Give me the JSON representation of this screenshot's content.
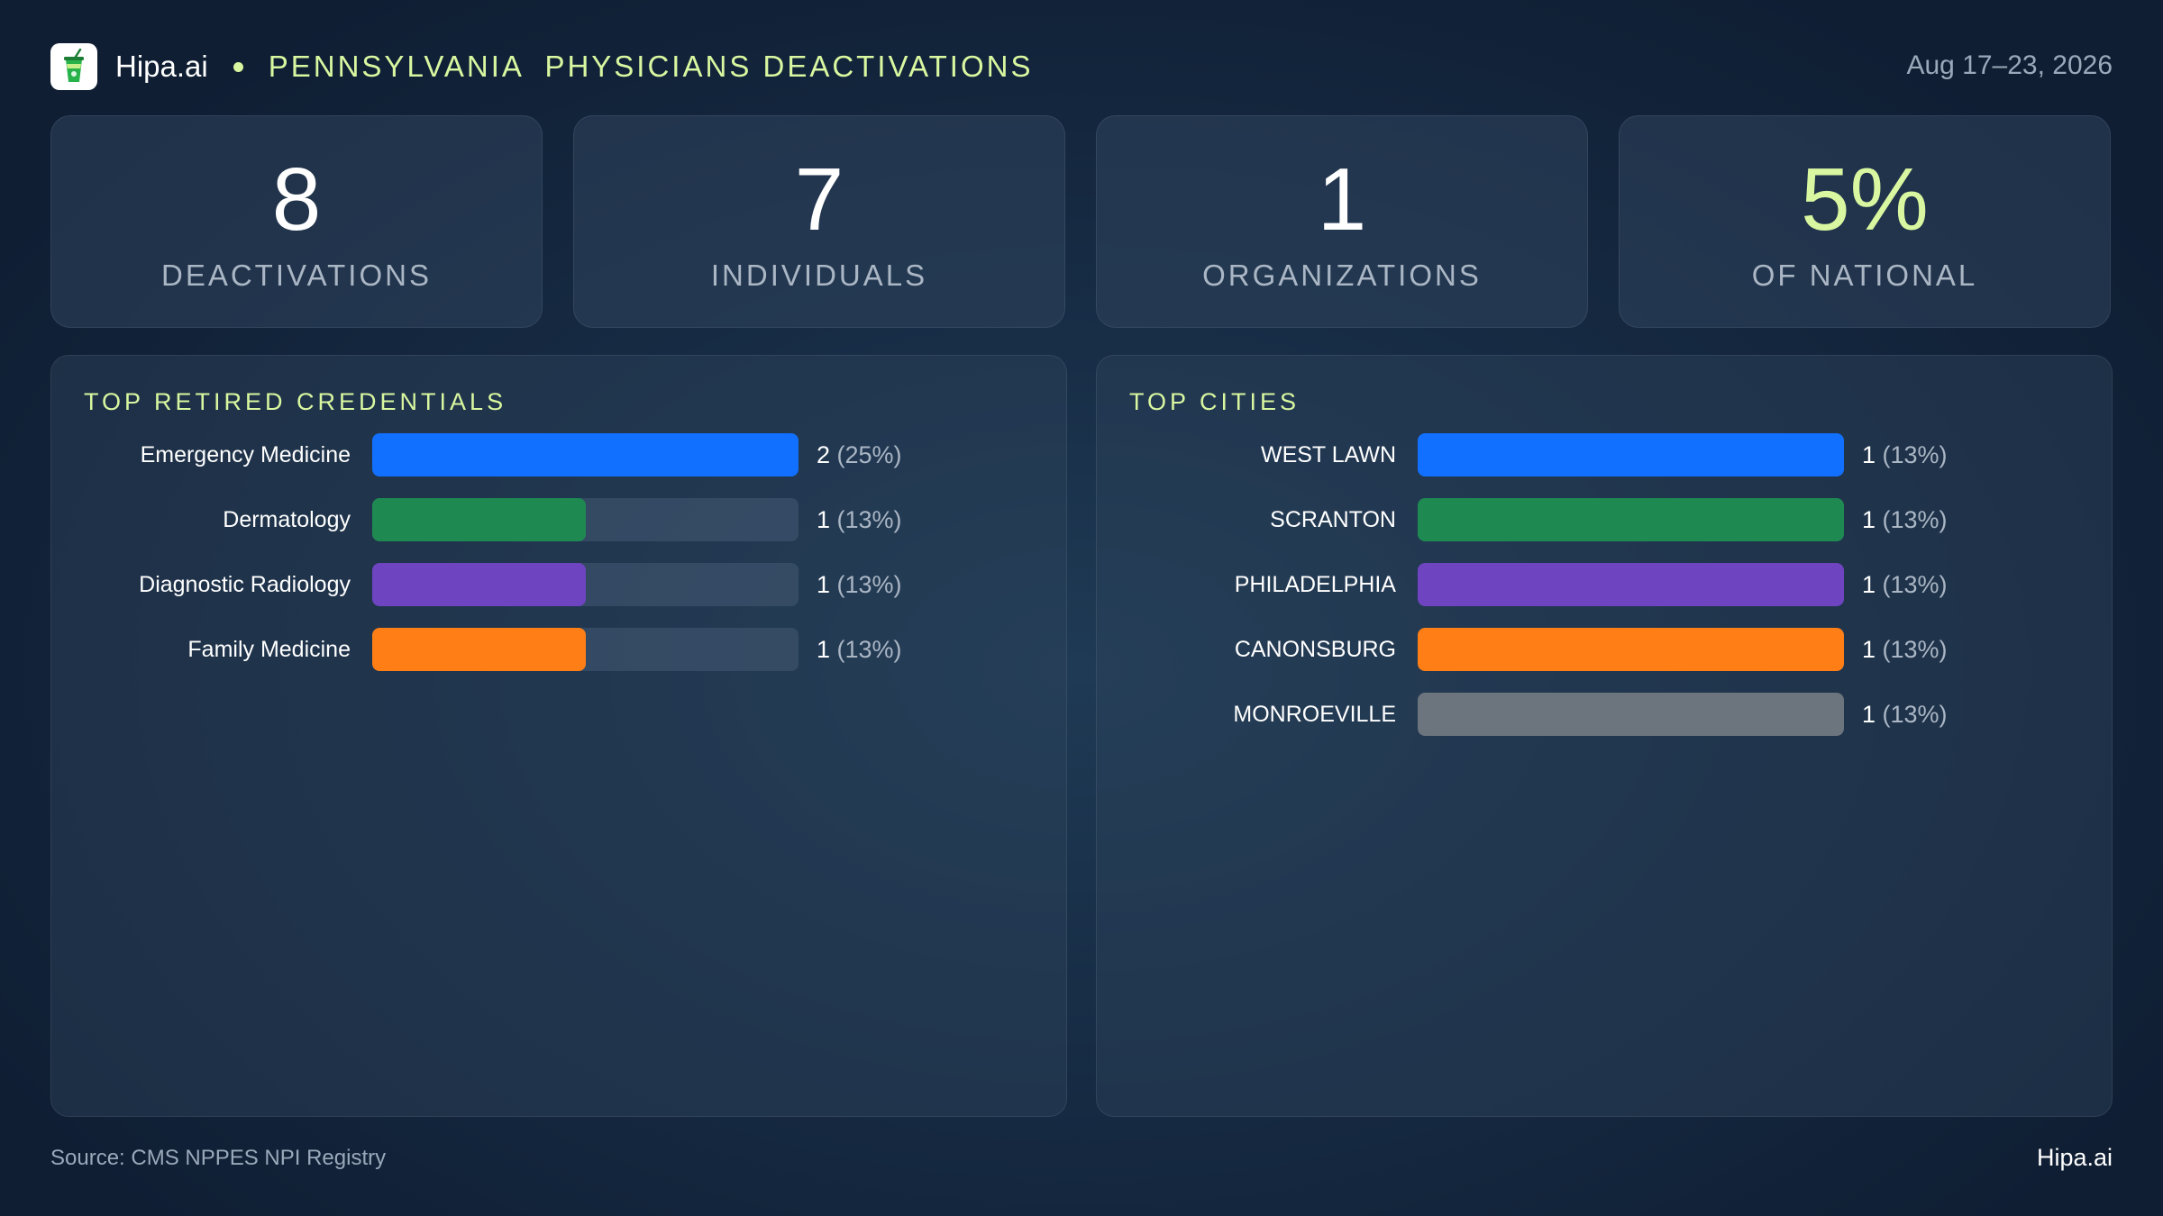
{
  "header": {
    "brand": "Hipa.ai",
    "title": "PENNSYLVANIA  PHYSICIANS DEACTIVATIONS",
    "date": "Aug 17–23, 2026"
  },
  "kpis": [
    {
      "value": "8",
      "label": "DEACTIVATIONS",
      "accent": false
    },
    {
      "value": "7",
      "label": "INDIVIDUALS",
      "accent": false
    },
    {
      "value": "1",
      "label": "ORGANIZATIONS",
      "accent": false
    },
    {
      "value": "5%",
      "label": "OF NATIONAL",
      "accent": true
    }
  ],
  "colors": {
    "accent": "#d9f7a0",
    "blue": "#1170ff",
    "green": "#1e8a52",
    "purple": "#6e44c0",
    "orange": "#ff7f16",
    "gray": "#6c747d"
  },
  "chart_data": [
    {
      "type": "bar",
      "title": "TOP RETIRED CREDENTIALS",
      "categories": [
        "Emergency Medicine",
        "Dermatology",
        "Diagnostic Radiology",
        "Family Medicine"
      ],
      "values": [
        2,
        1,
        1,
        1
      ],
      "value_labels": [
        "(25%)",
        "(13%)",
        "(13%)",
        "(13%)"
      ],
      "colors": [
        "#1170ff",
        "#1e8a52",
        "#6e44c0",
        "#ff7f16"
      ],
      "xlim": [
        0,
        2
      ]
    },
    {
      "type": "bar",
      "title": "TOP CITIES",
      "categories": [
        "WEST LAWN",
        "SCRANTON",
        "PHILADELPHIA",
        "CANONSBURG",
        "MONROEVILLE"
      ],
      "values": [
        1,
        1,
        1,
        1,
        1
      ],
      "value_labels": [
        "(13%)",
        "(13%)",
        "(13%)",
        "(13%)",
        "(13%)"
      ],
      "colors": [
        "#1170ff",
        "#1e8a52",
        "#6e44c0",
        "#ff7f16",
        "#6c747d"
      ],
      "xlim": [
        0,
        1
      ]
    }
  ],
  "footer": {
    "source": "Source: CMS NPPES NPI Registry",
    "brand": "Hipa.ai"
  }
}
